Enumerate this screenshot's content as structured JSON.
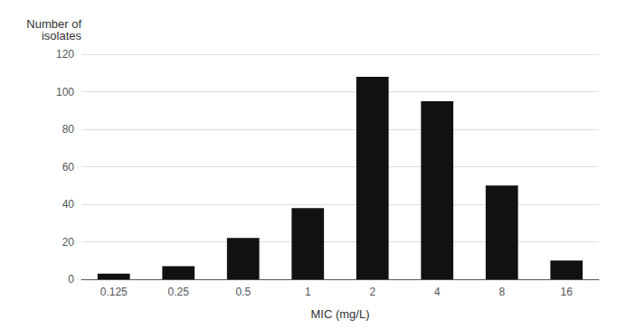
{
  "chart_data": {
    "type": "bar",
    "categories": [
      "0.125",
      "0.25",
      "0.5",
      "1",
      "2",
      "4",
      "8",
      "16"
    ],
    "values": [
      3,
      7,
      22,
      38,
      108,
      95,
      50,
      10
    ],
    "color": "#111111",
    "xlabel": "MIC (mg/L)",
    "ylabel": "Number of\nisolates",
    "ylim": [
      0,
      120
    ],
    "yticks": [
      0,
      20,
      40,
      60,
      80,
      100,
      120
    ],
    "grid": true
  }
}
